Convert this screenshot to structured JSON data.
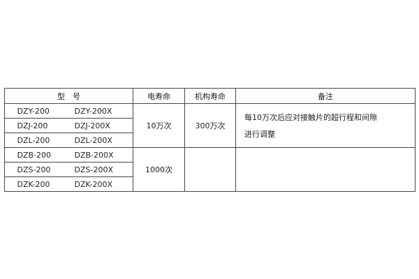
{
  "headers": {
    "model": "型　号",
    "electrical_life": "电寿命",
    "mechanical_life": "机构寿命",
    "notes": "备注"
  },
  "rows": [
    {
      "model_a": "DZY-200",
      "model_b": "DZY-200X"
    },
    {
      "model_a": "DZJ-200",
      "model_b": "DZJ-200X"
    },
    {
      "model_a": "DZL-200",
      "model_b": "DZL-200X"
    },
    {
      "model_a": "DZB-200",
      "model_b": "DZB-200X"
    },
    {
      "model_a": "DZS-200",
      "model_b": "DZS-200X"
    },
    {
      "model_a": "DZK-200",
      "model_b": "DZK-200X"
    }
  ],
  "group1": {
    "electrical_life": "10万次",
    "mechanical_life": "300万次",
    "note_line1": "每10万次后应对接触片的超行程和间隙",
    "note_line2": "进行调整"
  },
  "group2": {
    "electrical_life": "1000次",
    "mechanical_life": "",
    "note": ""
  }
}
